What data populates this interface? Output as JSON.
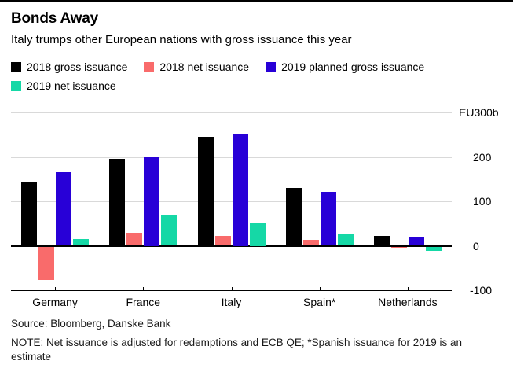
{
  "header": {
    "title": "Bonds Away",
    "subtitle": "Italy trumps other European nations with gross issuance this year"
  },
  "chart_data": {
    "type": "bar",
    "title": "Bonds Away",
    "subtitle": "Italy trumps other European nations with gross issuance this year",
    "categories": [
      "Germany",
      "France",
      "Italy",
      "Spain*",
      "Netherlands"
    ],
    "series": [
      {
        "name": "2018 gross issuance",
        "color": "#000000",
        "values": [
          145,
          195,
          245,
          130,
          23
        ]
      },
      {
        "name": "2018 net issuance",
        "color": "#F96B6B",
        "values": [
          -75,
          30,
          22,
          13,
          -2
        ]
      },
      {
        "name": "2019 planned gross issuance",
        "color": "#2800D7",
        "values": [
          165,
          200,
          250,
          122,
          21
        ]
      },
      {
        "name": "2019 net issuance",
        "color": "#15D8A6",
        "values": [
          15,
          70,
          50,
          28,
          -10
        ]
      }
    ],
    "unit": "EU billions",
    "ylim": [
      -100,
      300
    ],
    "y_ticks": [
      {
        "label": "EU300b",
        "value": 300
      },
      {
        "label": "200",
        "value": 200
      },
      {
        "label": "100",
        "value": 100
      },
      {
        "label": "0",
        "value": 0
      },
      {
        "label": "-100",
        "value": -100
      }
    ],
    "grid": true,
    "legend_position": "top",
    "colors": {
      "gridline": "#d9d9d9",
      "zero_line": "#000000",
      "axis": "#000000"
    }
  },
  "footer": {
    "source": "Source: Bloomberg, Danske Bank",
    "note": "NOTE: Net issuance is adjusted for redemptions and ECB QE; *Spanish issuance for 2019 is an estimate"
  }
}
